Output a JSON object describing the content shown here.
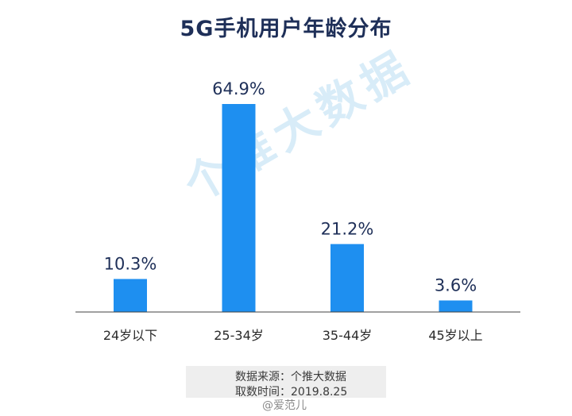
{
  "chart_data": {
    "type": "bar",
    "title": "5G手机用户年龄分布",
    "categories": [
      "24岁以下",
      "25-34岁",
      "35-44岁",
      "45岁以上"
    ],
    "values": [
      10.3,
      64.9,
      21.2,
      3.6
    ],
    "value_labels": [
      "10.3%",
      "64.9%",
      "21.2%",
      "3.6%"
    ],
    "ylim": [
      0,
      70
    ],
    "grid": false,
    "bar_color": "#1e8ff0"
  },
  "footer": {
    "source": "数据来源：个推大数据",
    "date": "取数时间：2019.8.25"
  },
  "watermark": {
    "text": "个推大数据",
    "weibo": "@爱范儿"
  },
  "colors": {
    "title": "#1e2f58",
    "axis": "#404040",
    "watermark": "#d8ecf8"
  }
}
